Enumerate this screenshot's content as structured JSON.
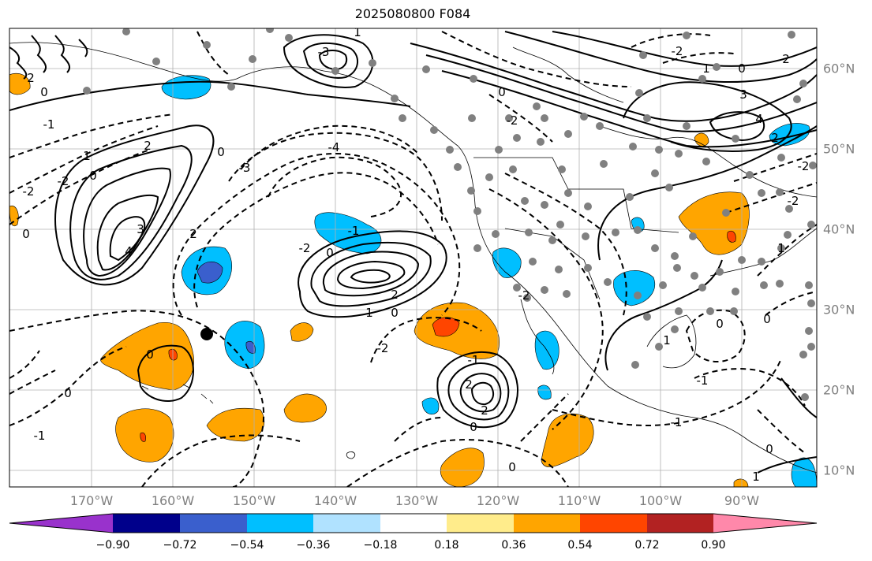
{
  "title": "2025080800 F084",
  "lon_labels": [
    "170°W",
    "160°W",
    "150°W",
    "140°W",
    "130°W",
    "120°W",
    "110°W",
    "100°W",
    "90°W"
  ],
  "lat_labels": [
    "60°N",
    "50°N",
    "40°N",
    "30°N",
    "20°N",
    "10°N"
  ],
  "colorbar": {
    "ticks": [
      "−0.90",
      "−0.72",
      "−0.54",
      "−0.36",
      "−0.18",
      "0.18",
      "0.36",
      "0.54",
      "0.72",
      "0.90"
    ],
    "colors": [
      "#9932cc",
      "#00008b",
      "#3a5fcd",
      "#00bfff",
      "#b0e2ff",
      "#ffffff",
      "#ffec8b",
      "#ffa500",
      "#ff4500",
      "#b22222",
      "#ff88aa"
    ]
  },
  "contour_labels": [
    "0",
    "1",
    "2",
    "3",
    "4",
    "-1",
    "-2",
    "-3",
    "-4"
  ],
  "fill_colors": {
    "orange": "#ffa500",
    "red": "#ff4500",
    "deep_blue": "#3a5fcd",
    "sky_blue": "#00bfff",
    "light_blue": "#b0e2ff"
  },
  "grid_color": "#b0b0b0",
  "station_color": "#808080"
}
